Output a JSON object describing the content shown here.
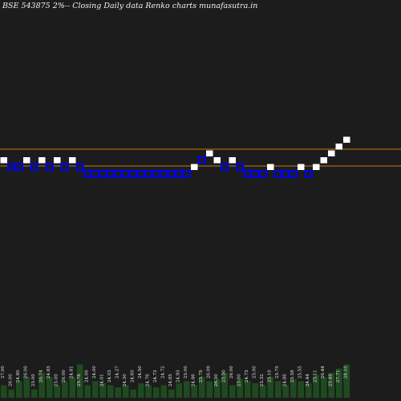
{
  "title": "BSE 543875 2%-- Closing Daily data Renko  charts munafasutra.in",
  "colors": {
    "background": "#1c1c1c",
    "up_brick": "#ffffff",
    "down_brick": "#0000ff",
    "reference_line": "#c87810",
    "volume_bar": "#1f4a1f",
    "text": "#f2f2f2"
  },
  "chart_data": {
    "type": "renko",
    "brick_size": "2%",
    "reference_lines": [],
    "bricks": [
      "up",
      "down",
      "down",
      "up",
      "down",
      "up",
      "down",
      "up",
      "down",
      "up",
      "down",
      "down",
      "down",
      "down",
      "down",
      "down",
      "down",
      "down",
      "down",
      "down",
      "down",
      "down",
      "down",
      "down",
      "down",
      "up",
      "down",
      "up",
      "up",
      "down",
      "up",
      "down",
      "down",
      "down",
      "down",
      "up",
      "down",
      "down",
      "down",
      "up",
      "down",
      "up",
      "up",
      "up",
      "up",
      "up"
    ],
    "brick_levels": [
      2,
      1,
      1,
      2,
      1,
      2,
      1,
      2,
      1,
      2,
      1,
      0,
      0,
      0,
      0,
      0,
      0,
      0,
      0,
      0,
      0,
      0,
      0,
      0,
      0,
      1,
      2,
      3,
      2,
      1,
      2,
      1,
      0,
      0,
      0,
      1,
      0,
      0,
      0,
      1,
      0,
      1,
      2,
      3,
      4,
      5
    ],
    "volume_labels": [
      "27.00",
      "26.00",
      "24.80",
      "26.00",
      "25.00",
      "26.74",
      "24.83",
      "25.00",
      "26.00",
      "24.81",
      "25.78",
      "24.00",
      "24.00",
      "24.01",
      "24.03",
      "24.27",
      "24.30",
      "24.60",
      "24.50",
      "24.76",
      "24.73",
      "24.72",
      "24.85",
      "24.93",
      "25.00",
      "24.86",
      "25.79",
      "26.09",
      "26.30",
      "25.50",
      "26.00",
      "25.00",
      "24.73",
      "25.00",
      "25.32",
      "25.10",
      "25.75",
      "24.86",
      "25.58",
      "25.55",
      "24.44",
      "25.11",
      "26.44",
      "25.49",
      "27.71",
      "28.10"
    ],
    "volume_heights": [
      0.3,
      0.2,
      0.4,
      0.5,
      0.2,
      0.6,
      0.5,
      0.3,
      0.4,
      0.5,
      0.8,
      0.3,
      0.4,
      0.35,
      0.3,
      0.25,
      0.3,
      0.2,
      0.35,
      0.3,
      0.25,
      0.3,
      0.2,
      0.35,
      0.4,
      0.3,
      0.5,
      0.4,
      0.45,
      0.6,
      0.3,
      0.45,
      0.4,
      0.35,
      0.3,
      0.5,
      0.4,
      0.3,
      0.45,
      0.4,
      0.35,
      0.55,
      0.5,
      0.6,
      0.7,
      0.8
    ]
  }
}
